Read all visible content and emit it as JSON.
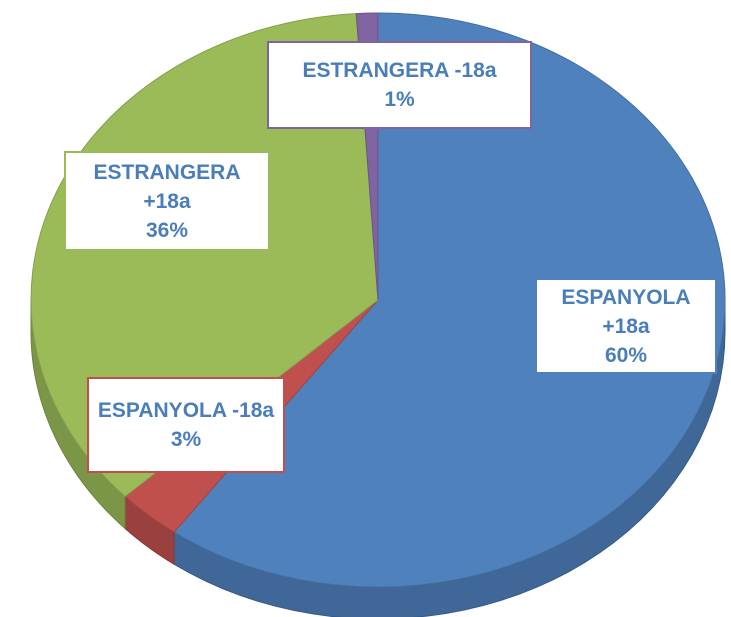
{
  "chart_data": {
    "type": "pie",
    "categories": [
      "ESPANYOLA +18a",
      "ESPANYOLA -18a",
      "ESTRANGERA +18a",
      "ESTRANGERA -18a"
    ],
    "values": [
      60,
      3,
      36,
      1
    ],
    "value_labels": [
      "60%",
      "3%",
      "36%",
      "1%"
    ],
    "colors": [
      "#4f81bd",
      "#c0504d",
      "#9bbb59",
      "#8064a2"
    ],
    "start_angle": 0,
    "direction": "clockwise"
  }
}
